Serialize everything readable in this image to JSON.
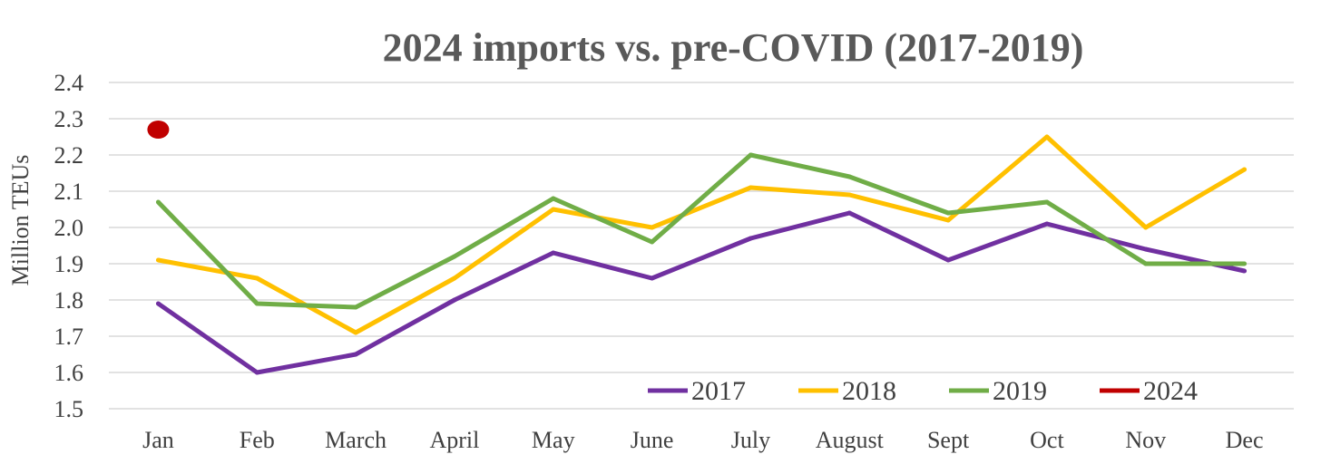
{
  "chart_data": {
    "type": "line",
    "title": "2024 imports vs. pre-COVID (2017-2019)",
    "xlabel": "",
    "ylabel": "Million TEUs",
    "categories": [
      "Jan",
      "Feb",
      "March",
      "April",
      "May",
      "June",
      "July",
      "August",
      "Sept",
      "Oct",
      "Nov",
      "Dec"
    ],
    "ylim": [
      1.5,
      2.4
    ],
    "yticks": [
      "1.5",
      "1.6",
      "1.7",
      "1.8",
      "1.9",
      "2.0",
      "2.1",
      "2.2",
      "2.3",
      "2.4"
    ],
    "grid": true,
    "legend_position": "bottom-right",
    "series": [
      {
        "name": "2017",
        "color": "#7030a0",
        "values": [
          1.79,
          1.6,
          1.65,
          1.8,
          1.93,
          1.86,
          1.97,
          2.04,
          1.91,
          2.01,
          1.94,
          1.88
        ]
      },
      {
        "name": "2018",
        "color": "#ffc000",
        "values": [
          1.91,
          1.86,
          1.71,
          1.86,
          2.05,
          2.0,
          2.11,
          2.09,
          2.02,
          2.25,
          2.0,
          2.16
        ]
      },
      {
        "name": "2019",
        "color": "#70ad47",
        "values": [
          2.07,
          1.79,
          1.78,
          1.92,
          2.08,
          1.96,
          2.2,
          2.14,
          2.04,
          2.07,
          1.9,
          1.9
        ]
      },
      {
        "name": "2024",
        "color": "#c00000",
        "values": [
          2.27,
          null,
          null,
          null,
          null,
          null,
          null,
          null,
          null,
          null,
          null,
          null
        ]
      }
    ]
  }
}
